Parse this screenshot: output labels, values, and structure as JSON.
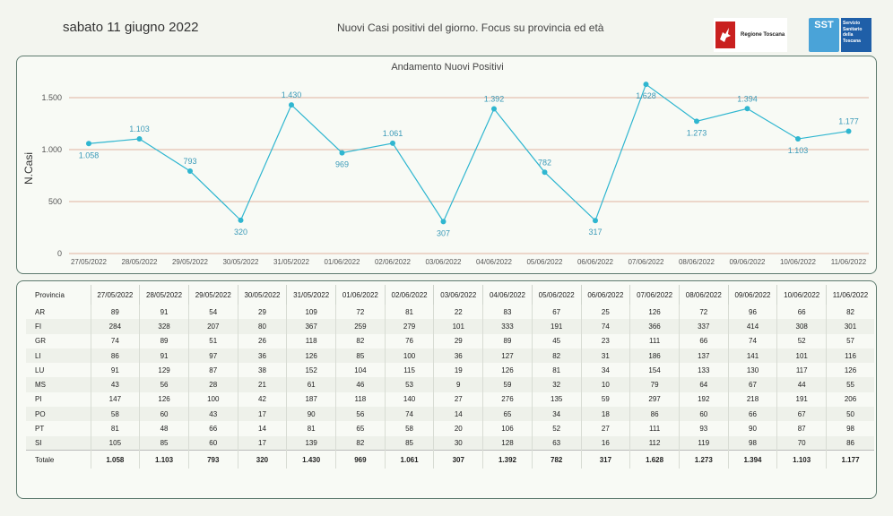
{
  "header": {
    "date": "sabato 11 giugno 2022",
    "subtitle": "Nuovi Casi positivi del giorno. Focus su provincia ed età",
    "logo_rt_text": "Regione Toscana",
    "logo_sst_mark": "SST",
    "logo_sst_text": [
      "Servizio",
      "Sanitario",
      "della",
      "Toscana"
    ]
  },
  "colors": {
    "line": "#2fb6d0",
    "label": "#3a9ab8",
    "grid": "#d89a82",
    "panel_border": "#5d7a6e"
  },
  "chart_data": {
    "type": "line",
    "title": "Andamento Nuovi Positivi",
    "ylabel": "N.Casi",
    "xlabel": "",
    "ylim": [
      0,
      1750
    ],
    "yticks": [
      0,
      500,
      1000,
      1500
    ],
    "ytick_labels": [
      "0",
      "500",
      "1.000",
      "1.500"
    ],
    "categories": [
      "27/05/2022",
      "28/05/2022",
      "29/05/2022",
      "30/05/2022",
      "31/05/2022",
      "01/06/2022",
      "02/06/2022",
      "03/06/2022",
      "04/06/2022",
      "05/06/2022",
      "06/06/2022",
      "07/06/2022",
      "08/06/2022",
      "09/06/2022",
      "10/06/2022",
      "11/06/2022"
    ],
    "values": [
      1058,
      1103,
      793,
      320,
      1430,
      969,
      1061,
      307,
      1392,
      782,
      317,
      1628,
      1273,
      1394,
      1103,
      1177
    ],
    "value_labels": [
      "1.058",
      "1.103",
      "793",
      "320",
      "1.430",
      "969",
      "1.061",
      "307",
      "1.392",
      "782",
      "317",
      "1.628",
      "1.273",
      "1.394",
      "1.103",
      "1.177"
    ],
    "label_pos": [
      "below",
      "above",
      "above",
      "below",
      "above",
      "below",
      "above",
      "below",
      "above",
      "above",
      "below",
      "below",
      "below",
      "above",
      "below",
      "above"
    ],
    "grid": true
  },
  "table": {
    "header_label": "Provincia",
    "columns": [
      "27/05/2022",
      "28/05/2022",
      "29/05/2022",
      "30/05/2022",
      "31/05/2022",
      "01/06/2022",
      "02/06/2022",
      "03/06/2022",
      "04/06/2022",
      "05/06/2022",
      "06/06/2022",
      "07/06/2022",
      "08/06/2022",
      "09/06/2022",
      "10/06/2022",
      "11/06/2022"
    ],
    "rows": [
      {
        "name": "AR",
        "values": [
          "89",
          "91",
          "54",
          "29",
          "109",
          "72",
          "81",
          "22",
          "83",
          "67",
          "25",
          "126",
          "72",
          "96",
          "66",
          "82"
        ]
      },
      {
        "name": "FI",
        "values": [
          "284",
          "328",
          "207",
          "80",
          "367",
          "259",
          "279",
          "101",
          "333",
          "191",
          "74",
          "366",
          "337",
          "414",
          "308",
          "301"
        ]
      },
      {
        "name": "GR",
        "values": [
          "74",
          "89",
          "51",
          "26",
          "118",
          "82",
          "76",
          "29",
          "89",
          "45",
          "23",
          "111",
          "66",
          "74",
          "52",
          "57"
        ]
      },
      {
        "name": "LI",
        "values": [
          "86",
          "91",
          "97",
          "36",
          "126",
          "85",
          "100",
          "36",
          "127",
          "82",
          "31",
          "186",
          "137",
          "141",
          "101",
          "116"
        ]
      },
      {
        "name": "LU",
        "values": [
          "91",
          "129",
          "87",
          "38",
          "152",
          "104",
          "115",
          "19",
          "126",
          "81",
          "34",
          "154",
          "133",
          "130",
          "117",
          "126"
        ]
      },
      {
        "name": "MS",
        "values": [
          "43",
          "56",
          "28",
          "21",
          "61",
          "46",
          "53",
          "9",
          "59",
          "32",
          "10",
          "79",
          "64",
          "67",
          "44",
          "55"
        ]
      },
      {
        "name": "PI",
        "values": [
          "147",
          "126",
          "100",
          "42",
          "187",
          "118",
          "140",
          "27",
          "276",
          "135",
          "59",
          "297",
          "192",
          "218",
          "191",
          "206"
        ]
      },
      {
        "name": "PO",
        "values": [
          "58",
          "60",
          "43",
          "17",
          "90",
          "56",
          "74",
          "14",
          "65",
          "34",
          "18",
          "86",
          "60",
          "66",
          "67",
          "50"
        ]
      },
      {
        "name": "PT",
        "values": [
          "81",
          "48",
          "66",
          "14",
          "81",
          "65",
          "58",
          "20",
          "106",
          "52",
          "27",
          "111",
          "93",
          "90",
          "87",
          "98"
        ]
      },
      {
        "name": "SI",
        "values": [
          "105",
          "85",
          "60",
          "17",
          "139",
          "82",
          "85",
          "30",
          "128",
          "63",
          "16",
          "112",
          "119",
          "98",
          "70",
          "86"
        ]
      }
    ],
    "total_label": "Totale",
    "totals": [
      "1.058",
      "1.103",
      "793",
      "320",
      "1.430",
      "969",
      "1.061",
      "307",
      "1.392",
      "782",
      "317",
      "1.628",
      "1.273",
      "1.394",
      "1.103",
      "1.177"
    ]
  }
}
